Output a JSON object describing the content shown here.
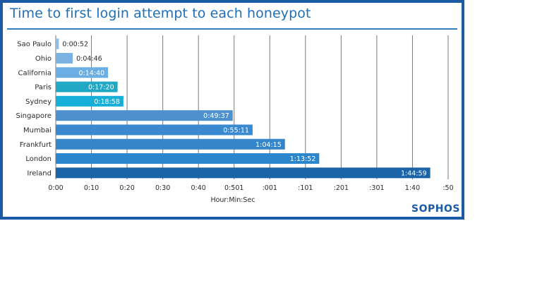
{
  "brand": "SOPHOS",
  "colors": {
    "frame": "#1d5aa6",
    "title": "#1f6fb8",
    "bars": [
      "#8fbde6",
      "#7ab3e3",
      "#6aaee3",
      "#21a8c4",
      "#17afd9",
      "#4f91cf",
      "#3a89d0",
      "#3585cb",
      "#2c86cc",
      "#1b64a5"
    ]
  },
  "chart_data": {
    "type": "bar",
    "orientation": "horizontal",
    "title": "Time to first login attempt to each honeypot",
    "xlabel": "Hour:Min:Sec",
    "ylabel": "",
    "grid": true,
    "categories": [
      "Sao Paulo",
      "Ohio",
      "California",
      "Paris",
      "Sydney",
      "Singapore",
      "Mumbai",
      "Frankfurt",
      "London",
      "Ireland"
    ],
    "values": [
      52,
      286,
      880,
      1040,
      1138,
      2977,
      3311,
      3855,
      4432,
      6299
    ],
    "value_labels": [
      "0:00:52",
      "0:04:46",
      "0:14:40",
      "0:17:20",
      "0:18:58",
      "0:49:37",
      "0:55:11",
      "1:04:15",
      "1:13:52",
      "1:44:59"
    ],
    "x_tick_labels": [
      "0:00",
      "0:10",
      "0:20",
      "0:30",
      "0:40",
      "0:501",
      ":001",
      ":101",
      ":201",
      ":301",
      "1:40",
      ":50"
    ],
    "x_tick_step": 600,
    "xlim": [
      0,
      6600
    ]
  }
}
